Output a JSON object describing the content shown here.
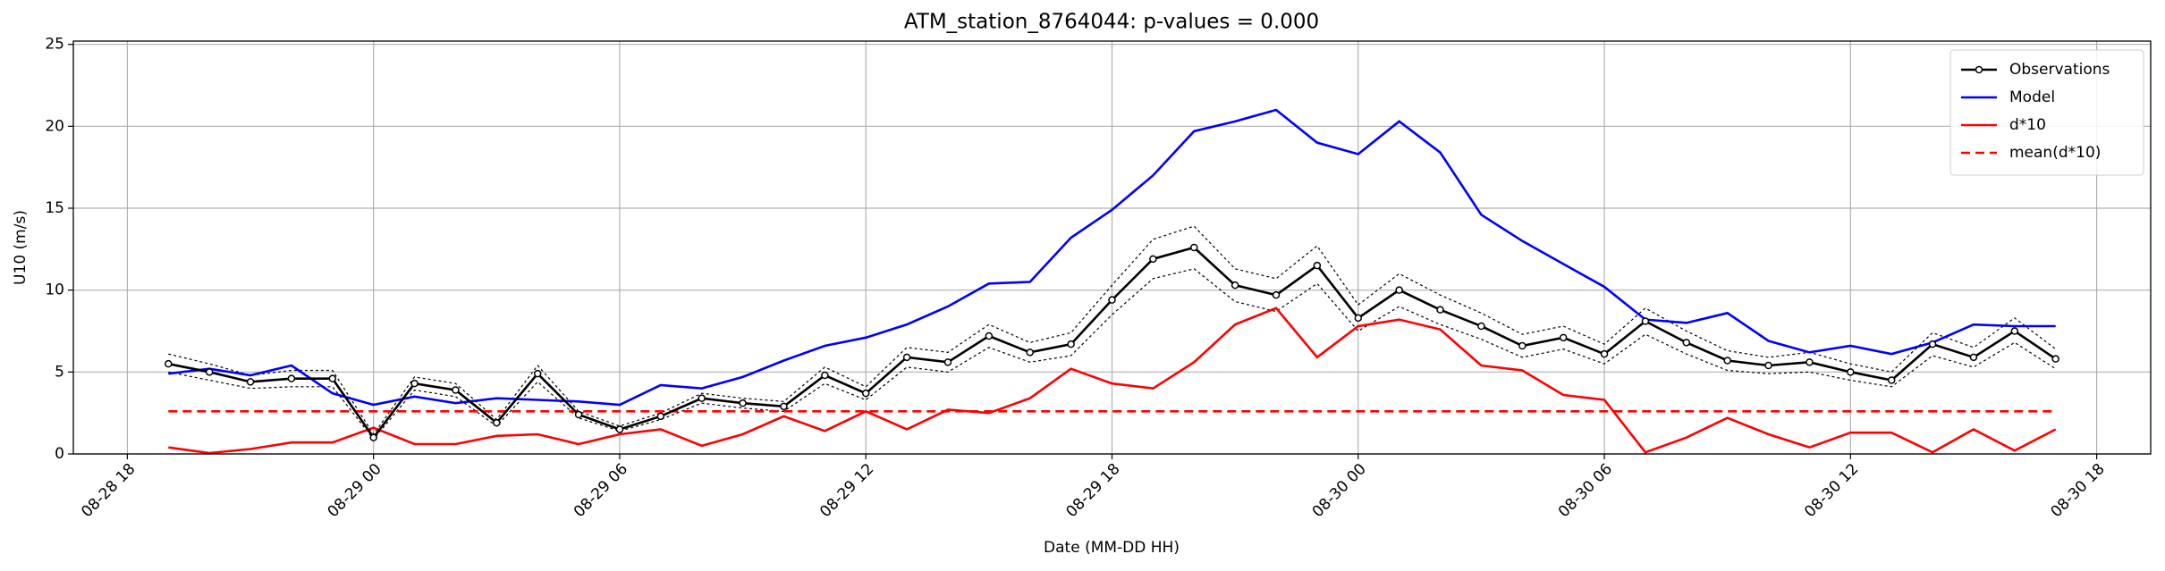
{
  "chart_data": {
    "type": "line",
    "title": "ATM_station_8764044: p-values = 0.000",
    "xlabel": "Date (MM-DD HH)",
    "ylabel": "U10 (m/s)",
    "x": [
      "08-28 19",
      "08-28 20",
      "08-28 21",
      "08-28 22",
      "08-28 23",
      "08-29 00",
      "08-29 01",
      "08-29 02",
      "08-29 03",
      "08-29 04",
      "08-29 05",
      "08-29 06",
      "08-29 07",
      "08-29 08",
      "08-29 09",
      "08-29 10",
      "08-29 11",
      "08-29 12",
      "08-29 13",
      "08-29 14",
      "08-29 15",
      "08-29 16",
      "08-29 17",
      "08-29 18",
      "08-29 19",
      "08-29 20",
      "08-29 21",
      "08-29 22",
      "08-29 23",
      "08-30 00",
      "08-30 01",
      "08-30 02",
      "08-30 03",
      "08-30 04",
      "08-30 05",
      "08-30 06",
      "08-30 07",
      "08-30 08",
      "08-30 09",
      "08-30 10",
      "08-30 11",
      "08-30 12",
      "08-30 13",
      "08-30 14",
      "08-30 15",
      "08-30 16",
      "08-30 17"
    ],
    "series": [
      {
        "name": "Observations",
        "color": "#000000",
        "marker": "o",
        "linestyle": "solid",
        "values": [
          5.5,
          5.0,
          4.4,
          4.6,
          4.6,
          1.0,
          4.3,
          3.9,
          1.9,
          4.9,
          2.4,
          1.5,
          2.3,
          3.4,
          3.1,
          2.9,
          4.8,
          3.7,
          5.9,
          5.6,
          7.2,
          6.2,
          6.7,
          9.4,
          11.9,
          12.6,
          10.3,
          9.7,
          11.5,
          8.3,
          10.0,
          8.8,
          7.8,
          6.6,
          7.1,
          6.1,
          8.1,
          6.8,
          5.7,
          5.4,
          5.6,
          5.0,
          4.5,
          6.7,
          5.9,
          7.5,
          5.8
        ]
      },
      {
        "color": "#000000",
        "linestyle": "dotted",
        "values": [
          6.1,
          5.5,
          4.8,
          5.1,
          5.1,
          1.2,
          4.7,
          4.3,
          2.1,
          5.4,
          2.6,
          1.7,
          2.5,
          3.7,
          3.4,
          3.2,
          5.3,
          4.1,
          6.5,
          6.2,
          7.9,
          6.8,
          7.4,
          10.3,
          13.1,
          13.9,
          11.3,
          10.7,
          12.7,
          9.1,
          11.0,
          9.7,
          8.6,
          7.3,
          7.8,
          6.7,
          8.9,
          7.5,
          6.3,
          5.9,
          6.2,
          5.5,
          5.0,
          7.4,
          6.5,
          8.3,
          6.4
        ]
      },
      {
        "color": "#000000",
        "linestyle": "dotted",
        "values": [
          5.0,
          4.5,
          4.0,
          4.1,
          4.1,
          0.9,
          3.9,
          3.5,
          1.7,
          4.4,
          2.2,
          1.4,
          2.1,
          3.1,
          2.8,
          2.6,
          4.3,
          3.3,
          5.3,
          5.0,
          6.5,
          5.6,
          6.0,
          8.5,
          10.7,
          11.3,
          9.3,
          8.7,
          10.4,
          7.5,
          9.0,
          7.9,
          7.0,
          5.9,
          6.4,
          5.5,
          7.3,
          6.1,
          5.1,
          4.9,
          5.0,
          4.5,
          4.1,
          6.0,
          5.3,
          6.8,
          5.2
        ]
      },
      {
        "name": "Model",
        "color": "#0000ff",
        "linestyle": "solid",
        "values": [
          4.9,
          5.2,
          4.8,
          5.4,
          3.7,
          3.0,
          3.5,
          3.1,
          3.4,
          3.3,
          3.2,
          3.0,
          4.2,
          4.0,
          4.7,
          5.7,
          6.6,
          7.1,
          7.9,
          9.0,
          10.4,
          10.5,
          13.2,
          14.9,
          17.0,
          19.7,
          20.3,
          21.0,
          19.0,
          18.3,
          20.3,
          18.4,
          14.6,
          13.0,
          11.6,
          10.2,
          8.2,
          8.0,
          8.6,
          6.9,
          6.2,
          6.6,
          6.1,
          6.8,
          7.9,
          7.8,
          7.8
        ]
      },
      {
        "name": "d*10",
        "color": "#ff0000",
        "linestyle": "solid",
        "values": [
          0.4,
          0.05,
          0.3,
          0.7,
          0.7,
          1.6,
          0.6,
          0.6,
          1.1,
          1.2,
          0.6,
          1.2,
          1.5,
          0.5,
          1.2,
          2.3,
          1.4,
          2.6,
          1.5,
          2.7,
          2.5,
          3.4,
          5.2,
          4.3,
          4.0,
          5.6,
          7.9,
          8.9,
          5.9,
          7.8,
          8.2,
          7.6,
          5.4,
          5.1,
          3.6,
          3.3,
          0.1,
          1.0,
          2.2,
          1.2,
          0.4,
          1.3,
          1.3,
          0.1,
          1.5,
          0.2,
          1.5
        ]
      },
      {
        "name": "mean(d*10)",
        "color": "#ff0000",
        "linestyle": "dashed",
        "values": [
          2.6,
          2.6,
          2.6,
          2.6,
          2.6,
          2.6,
          2.6,
          2.6,
          2.6,
          2.6,
          2.6,
          2.6,
          2.6,
          2.6,
          2.6,
          2.6,
          2.6,
          2.6,
          2.6,
          2.6,
          2.6,
          2.6,
          2.6,
          2.6,
          2.6,
          2.6,
          2.6,
          2.6,
          2.6,
          2.6,
          2.6,
          2.6,
          2.6,
          2.6,
          2.6,
          2.6,
          2.6,
          2.6,
          2.6,
          2.6,
          2.6,
          2.6,
          2.6,
          2.6,
          2.6,
          2.6,
          2.6
        ]
      }
    ],
    "xlim": [
      "08-28 16:41",
      "08-30 19:19"
    ],
    "xticks": [
      "08-28 18",
      "08-29 00",
      "08-29 06",
      "08-29 12",
      "08-29 18",
      "08-30 00",
      "08-30 06",
      "08-30 12",
      "08-30 18"
    ],
    "ylim": [
      0,
      25.2
    ],
    "yticks": [
      0,
      5,
      10,
      15,
      20,
      25
    ],
    "grid": true,
    "legend": "upper right"
  }
}
